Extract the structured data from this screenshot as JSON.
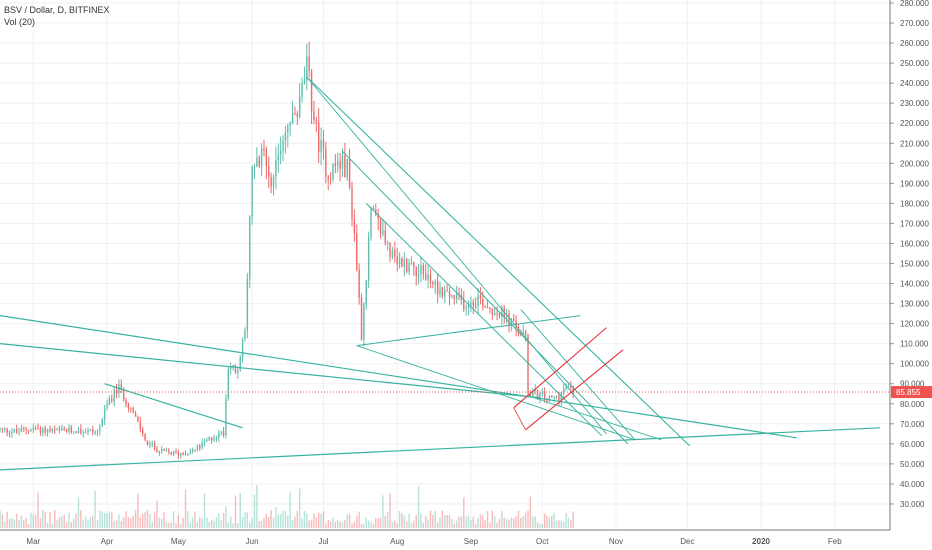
{
  "header": {
    "title": "BSV / Dollar, D, BITFINEX",
    "indicator": "Vol (20)"
  },
  "current_price_label": "85.855",
  "colors": {
    "up": "#5fbfae",
    "down": "#ef6b6b",
    "trend": "#38b3a0",
    "channel": "#e8313c",
    "price_line": "#ef5350",
    "grid": "#eef0f3"
  },
  "chart_data": {
    "type": "candlestick",
    "title": "BSV / Dollar, D, BITFINEX",
    "ylim": [
      20,
      280
    ],
    "y_ticks": [
      "30.000",
      "40.000",
      "50.000",
      "60.000",
      "70.000",
      "80.000",
      "90.000",
      "100.000",
      "110.000",
      "120.000",
      "130.000",
      "140.000",
      "150.000",
      "160.000",
      "170.000",
      "180.000",
      "190.000",
      "200.000",
      "210.000",
      "220.000",
      "230.000",
      "240.000",
      "250.000",
      "260.000",
      "270.000",
      "280.000"
    ],
    "x_ticks": [
      "Mar",
      "Apr",
      "May",
      "Jun",
      "Jul",
      "Aug",
      "Sep",
      "Oct",
      "Nov",
      "Dec",
      "2020",
      "Feb"
    ],
    "current_price": 85.855,
    "price_path": [
      [
        "2019-02-15",
        67
      ],
      [
        "2019-02-22",
        66
      ],
      [
        "2019-03-01",
        68
      ],
      [
        "2019-03-10",
        66
      ],
      [
        "2019-03-20",
        67
      ],
      [
        "2019-03-28",
        66
      ],
      [
        "2019-04-02",
        82
      ],
      [
        "2019-04-06",
        88
      ],
      [
        "2019-04-10",
        80
      ],
      [
        "2019-04-14",
        70
      ],
      [
        "2019-04-18",
        60
      ],
      [
        "2019-04-24",
        56
      ],
      [
        "2019-05-01",
        55
      ],
      [
        "2019-05-08",
        57
      ],
      [
        "2019-05-15",
        63
      ],
      [
        "2019-05-20",
        66
      ],
      [
        "2019-05-22",
        100
      ],
      [
        "2019-05-26",
        95
      ],
      [
        "2019-05-29",
        120
      ],
      [
        "2019-06-01",
        195
      ],
      [
        "2019-06-06",
        205
      ],
      [
        "2019-06-10",
        190
      ],
      [
        "2019-06-14",
        215
      ],
      [
        "2019-06-20",
        225
      ],
      [
        "2019-06-24",
        248
      ],
      [
        "2019-06-28",
        215
      ],
      [
        "2019-07-03",
        195
      ],
      [
        "2019-07-07",
        200
      ],
      [
        "2019-07-11",
        198
      ],
      [
        "2019-07-14",
        165
      ],
      [
        "2019-07-17",
        115
      ],
      [
        "2019-07-21",
        175
      ],
      [
        "2019-07-26",
        165
      ],
      [
        "2019-07-31",
        150
      ],
      [
        "2019-08-06",
        150
      ],
      [
        "2019-08-12",
        145
      ],
      [
        "2019-08-18",
        138
      ],
      [
        "2019-08-24",
        133
      ],
      [
        "2019-08-30",
        130
      ],
      [
        "2019-09-04",
        133
      ],
      [
        "2019-09-09",
        128
      ],
      [
        "2019-09-14",
        125
      ],
      [
        "2019-09-18",
        120
      ],
      [
        "2019-09-20",
        118
      ],
      [
        "2019-09-24",
        112
      ],
      [
        "2019-09-25",
        86
      ],
      [
        "2019-09-30",
        84
      ],
      [
        "2019-10-04",
        82
      ],
      [
        "2019-10-08",
        84
      ],
      [
        "2019-10-11",
        88
      ],
      [
        "2019-10-14",
        86
      ]
    ],
    "volume_axis": [
      "30.000",
      "40.000"
    ],
    "series": [
      {
        "name": "BSV / Dollar",
        "kind": "price"
      },
      {
        "name": "Vol (20)",
        "kind": "volume"
      }
    ]
  }
}
